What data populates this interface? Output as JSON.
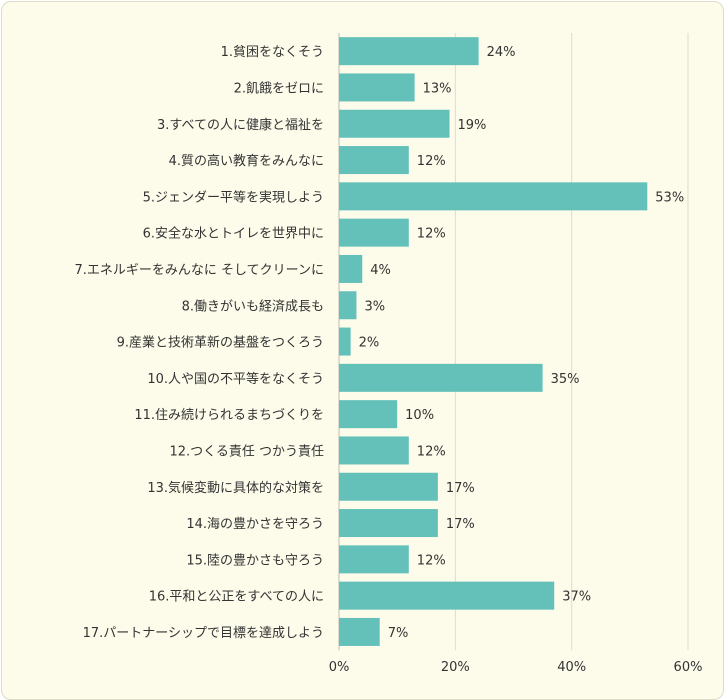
{
  "chart_data": {
    "type": "bar",
    "orientation": "horizontal",
    "categories": [
      "1.貧困をなくそう",
      "2.飢餓をゼロに",
      "3.すべての人に健康と福祉を",
      "4.質の高い教育をみんなに",
      "5.ジェンダー平等を実現しよう",
      "6.安全な水とトイレを世界中に",
      "7.エネルギーをみんなに そしてクリーンに",
      "8.働きがいも経済成長も",
      "9.産業と技術革新の基盤をつくろう",
      "10.人や国の不平等をなくそう",
      "11.住み続けられるまちづくりを",
      "12.つくる責任 つかう責任",
      "13.気候変動に具体的な対策を",
      "14.海の豊かさを守ろう",
      "15.陸の豊かさも守ろう",
      "16.平和と公正をすべての人に",
      "17.パートナーシップで目標を達成しよう"
    ],
    "values": [
      24,
      13,
      19,
      12,
      53,
      12,
      4,
      3,
      2,
      35,
      10,
      12,
      17,
      17,
      12,
      37,
      7
    ],
    "value_labels": [
      "24%",
      "13%",
      "19%",
      "12%",
      "53%",
      "12%",
      "4%",
      "3%",
      "2%",
      "35%",
      "10%",
      "12%",
      "17%",
      "17%",
      "12%",
      "37%",
      "7%"
    ],
    "xlim": [
      0,
      60
    ],
    "xticks": [
      0,
      20,
      40,
      60
    ],
    "xtick_labels": [
      "0%",
      "20%",
      "40%",
      "60%"
    ],
    "grid": true,
    "bar_color": "#63c1ba",
    "grid_color": "#dcdcd0",
    "title": "",
    "xlabel": "",
    "ylabel": ""
  }
}
